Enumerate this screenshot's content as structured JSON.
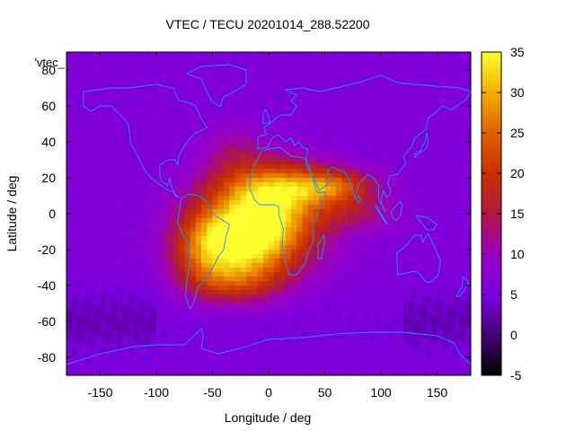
{
  "chart_data": {
    "type": "heatmap",
    "title": "VTEC / TECU 20201014_288.52200",
    "xlabel": "Longitude / deg",
    "ylabel": "Latitude / deg",
    "key_label": "'vtec_",
    "xlim": [
      -180,
      180
    ],
    "ylim": [
      -90,
      90
    ],
    "x_ticks": [
      -150,
      -100,
      -50,
      0,
      50,
      100,
      150
    ],
    "y_ticks": [
      -80,
      -60,
      -40,
      -20,
      0,
      20,
      40,
      60,
      80
    ],
    "colorbar": {
      "range": [
        -5,
        35
      ],
      "ticks": [
        -5,
        0,
        5,
        10,
        15,
        20,
        25,
        30,
        35
      ]
    },
    "grid_resolution_deg": [
      5,
      2.5
    ],
    "background_vtec": 6,
    "blobs": [
      {
        "name": "south-atlantic-core",
        "lon": 0,
        "lat": -5,
        "sx": 35,
        "sy": 18,
        "amp": 22
      },
      {
        "name": "south-america-east",
        "lon": -30,
        "lat": -15,
        "sx": 30,
        "sy": 15,
        "amp": 18
      },
      {
        "name": "africa-north-crest",
        "lon": 10,
        "lat": 15,
        "sx": 40,
        "sy": 10,
        "amp": 14
      },
      {
        "name": "indian-ocean-tail",
        "lon": 60,
        "lat": 15,
        "sx": 25,
        "sy": 6,
        "amp": 12
      },
      {
        "name": "southern-midlat",
        "lon": -30,
        "lat": -38,
        "sx": 30,
        "sy": 9,
        "amp": 10
      },
      {
        "name": "tropical-belt-east",
        "lon": 80,
        "lat": 0,
        "sx": 25,
        "sy": 7,
        "amp": 6
      },
      {
        "name": "south-america-west",
        "lon": -60,
        "lat": -20,
        "sx": 20,
        "sy": 15,
        "amp": 10
      },
      {
        "name": "north-atlantic-ridge",
        "lon": -30,
        "lat": 35,
        "sx": 20,
        "sy": 10,
        "amp": 5
      }
    ],
    "coastlines": [
      {
        "name": "north-america",
        "points": [
          [
            -165,
            68
          ],
          [
            -140,
            70
          ],
          [
            -125,
            70
          ],
          [
            -100,
            72
          ],
          [
            -85,
            70
          ],
          [
            -80,
            63
          ],
          [
            -72,
            62
          ],
          [
            -65,
            60
          ],
          [
            -60,
            53
          ],
          [
            -55,
            48
          ],
          [
            -65,
            45
          ],
          [
            -70,
            42
          ],
          [
            -75,
            38
          ],
          [
            -80,
            32
          ],
          [
            -81,
            27
          ],
          [
            -83,
            30
          ],
          [
            -90,
            30
          ],
          [
            -97,
            27
          ],
          [
            -97,
            21
          ],
          [
            -95,
            18
          ],
          [
            -90,
            16
          ],
          [
            -88,
            20
          ],
          [
            -87,
            16
          ],
          [
            -83,
            10
          ],
          [
            -80,
            9
          ],
          [
            -85,
            12
          ],
          [
            -92,
            14
          ],
          [
            -105,
            20
          ],
          [
            -110,
            24
          ],
          [
            -115,
            30
          ],
          [
            -118,
            34
          ],
          [
            -123,
            39
          ],
          [
            -124,
            46
          ],
          [
            -125,
            50
          ],
          [
            -132,
            55
          ],
          [
            -140,
            60
          ],
          [
            -150,
            60
          ],
          [
            -158,
            57
          ],
          [
            -165,
            60
          ],
          [
            -165,
            68
          ]
        ]
      },
      {
        "name": "south-america",
        "points": [
          [
            -78,
            8
          ],
          [
            -72,
            11
          ],
          [
            -62,
            10
          ],
          [
            -52,
            5
          ],
          [
            -50,
            0
          ],
          [
            -45,
            -2
          ],
          [
            -35,
            -6
          ],
          [
            -38,
            -13
          ],
          [
            -40,
            -20
          ],
          [
            -45,
            -24
          ],
          [
            -48,
            -28
          ],
          [
            -53,
            -34
          ],
          [
            -58,
            -38
          ],
          [
            -63,
            -41
          ],
          [
            -65,
            -45
          ],
          [
            -67,
            -50
          ],
          [
            -70,
            -53
          ],
          [
            -72,
            -50
          ],
          [
            -74,
            -45
          ],
          [
            -73,
            -38
          ],
          [
            -71,
            -30
          ],
          [
            -70,
            -18
          ],
          [
            -76,
            -12
          ],
          [
            -81,
            -5
          ],
          [
            -80,
            0
          ],
          [
            -78,
            8
          ]
        ]
      },
      {
        "name": "africa",
        "points": [
          [
            -17,
            15
          ],
          [
            -16,
            21
          ],
          [
            -13,
            27
          ],
          [
            -10,
            30
          ],
          [
            -6,
            35
          ],
          [
            0,
            36
          ],
          [
            10,
            37
          ],
          [
            20,
            32
          ],
          [
            32,
            31
          ],
          [
            35,
            28
          ],
          [
            43,
            12
          ],
          [
            51,
            12
          ],
          [
            45,
            2
          ],
          [
            40,
            -5
          ],
          [
            40,
            -15
          ],
          [
            35,
            -22
          ],
          [
            32,
            -28
          ],
          [
            25,
            -34
          ],
          [
            18,
            -34
          ],
          [
            15,
            -27
          ],
          [
            12,
            -17
          ],
          [
            13,
            -8
          ],
          [
            9,
            -1
          ],
          [
            9,
            4
          ],
          [
            5,
            5
          ],
          [
            -5,
            5
          ],
          [
            -8,
            5
          ],
          [
            -13,
            8
          ],
          [
            -17,
            15
          ]
        ]
      },
      {
        "name": "eurasia",
        "points": [
          [
            -10,
            36
          ],
          [
            -9,
            43
          ],
          [
            -2,
            44
          ],
          [
            -4,
            48
          ],
          [
            3,
            51
          ],
          [
            8,
            54
          ],
          [
            12,
            55
          ],
          [
            20,
            55
          ],
          [
            25,
            60
          ],
          [
            20,
            63
          ],
          [
            25,
            66
          ],
          [
            15,
            69
          ],
          [
            30,
            70
          ],
          [
            45,
            68
          ],
          [
            60,
            70
          ],
          [
            80,
            73
          ],
          [
            100,
            77
          ],
          [
            115,
            73
          ],
          [
            130,
            72
          ],
          [
            150,
            71
          ],
          [
            170,
            70
          ],
          [
            180,
            68
          ],
          [
            175,
            63
          ],
          [
            162,
            58
          ],
          [
            155,
            60
          ],
          [
            142,
            53
          ],
          [
            140,
            47
          ],
          [
            130,
            42
          ],
          [
            127,
            37
          ],
          [
            120,
            32
          ],
          [
            122,
            28
          ],
          [
            115,
            22
          ],
          [
            108,
            21
          ],
          [
            106,
            17
          ],
          [
            109,
            12
          ],
          [
            105,
            9
          ],
          [
            102,
            13
          ],
          [
            100,
            6
          ],
          [
            104,
            1
          ],
          [
            98,
            8
          ],
          [
            98,
            16
          ],
          [
            93,
            20
          ],
          [
            88,
            22
          ],
          [
            80,
            16
          ],
          [
            77,
            8
          ],
          [
            73,
            17
          ],
          [
            68,
            23
          ],
          [
            60,
            25
          ],
          [
            57,
            26
          ],
          [
            52,
            24
          ],
          [
            56,
            20
          ],
          [
            52,
            16
          ],
          [
            45,
            13
          ],
          [
            43,
            16
          ],
          [
            38,
            22
          ],
          [
            33,
            28
          ],
          [
            35,
            36
          ],
          [
            30,
            37
          ],
          [
            27,
            40
          ],
          [
            23,
            38
          ],
          [
            20,
            42
          ],
          [
            15,
            40
          ],
          [
            12,
            42
          ],
          [
            8,
            44
          ],
          [
            3,
            42
          ],
          [
            -1,
            37
          ],
          [
            -10,
            36
          ]
        ]
      },
      {
        "name": "australia",
        "points": [
          [
            114,
            -22
          ],
          [
            122,
            -18
          ],
          [
            130,
            -12
          ],
          [
            136,
            -12
          ],
          [
            137,
            -16
          ],
          [
            142,
            -11
          ],
          [
            145,
            -15
          ],
          [
            150,
            -22
          ],
          [
            153,
            -26
          ],
          [
            151,
            -34
          ],
          [
            145,
            -38
          ],
          [
            140,
            -38
          ],
          [
            135,
            -34
          ],
          [
            130,
            -32
          ],
          [
            115,
            -34
          ],
          [
            114,
            -22
          ]
        ]
      },
      {
        "name": "greenland",
        "points": [
          [
            -73,
            78
          ],
          [
            -60,
            82
          ],
          [
            -35,
            83
          ],
          [
            -20,
            80
          ],
          [
            -20,
            72
          ],
          [
            -25,
            70
          ],
          [
            -40,
            65
          ],
          [
            -43,
            60
          ],
          [
            -50,
            62
          ],
          [
            -55,
            68
          ],
          [
            -60,
            75
          ],
          [
            -73,
            78
          ]
        ]
      },
      {
        "name": "antarctica",
        "points": [
          [
            -180,
            -84
          ],
          [
            -150,
            -78
          ],
          [
            -120,
            -74
          ],
          [
            -100,
            -73
          ],
          [
            -75,
            -73
          ],
          [
            -60,
            -64
          ],
          [
            -58,
            -68
          ],
          [
            -60,
            -75
          ],
          [
            -45,
            -78
          ],
          [
            -20,
            -74
          ],
          [
            0,
            -70
          ],
          [
            30,
            -69
          ],
          [
            60,
            -67
          ],
          [
            90,
            -66
          ],
          [
            120,
            -66
          ],
          [
            150,
            -68
          ],
          [
            165,
            -72
          ],
          [
            170,
            -78
          ],
          [
            180,
            -84
          ]
        ]
      },
      {
        "name": "madagascar",
        "points": [
          [
            44,
            -25
          ],
          [
            47,
            -25
          ],
          [
            50,
            -15
          ],
          [
            49,
            -12
          ],
          [
            44,
            -17
          ],
          [
            44,
            -25
          ]
        ]
      },
      {
        "name": "great-britain",
        "points": [
          [
            -5,
            50
          ],
          [
            1,
            51
          ],
          [
            0,
            54
          ],
          [
            -3,
            58
          ],
          [
            -5,
            56
          ],
          [
            -5,
            50
          ]
        ]
      },
      {
        "name": "japan",
        "points": [
          [
            130,
            31
          ],
          [
            135,
            34
          ],
          [
            140,
            36
          ],
          [
            142,
            40
          ],
          [
            141,
            45
          ],
          [
            139,
            40
          ],
          [
            135,
            35
          ],
          [
            130,
            33
          ],
          [
            130,
            31
          ]
        ]
      },
      {
        "name": "new-zealand",
        "points": [
          [
            173,
            -35
          ],
          [
            178,
            -38
          ],
          [
            175,
            -42
          ],
          [
            170,
            -46
          ],
          [
            167,
            -46
          ],
          [
            172,
            -41
          ],
          [
            173,
            -35
          ]
        ]
      },
      {
        "name": "borneo",
        "points": [
          [
            109,
            1
          ],
          [
            117,
            7
          ],
          [
            119,
            5
          ],
          [
            117,
            -1
          ],
          [
            114,
            -4
          ],
          [
            110,
            -2
          ],
          [
            109,
            1
          ]
        ]
      },
      {
        "name": "sumatra",
        "points": [
          [
            95,
            5
          ],
          [
            106,
            -6
          ],
          [
            104,
            -5
          ],
          [
            98,
            1
          ],
          [
            95,
            5
          ]
        ]
      },
      {
        "name": "new-guinea",
        "points": [
          [
            131,
            -1
          ],
          [
            141,
            -2
          ],
          [
            150,
            -6
          ],
          [
            147,
            -9
          ],
          [
            141,
            -9
          ],
          [
            135,
            -4
          ],
          [
            131,
            -1
          ]
        ]
      },
      {
        "name": "sri-lanka",
        "points": [
          [
            80,
            6
          ],
          [
            82,
            8
          ],
          [
            80,
            10
          ],
          [
            79,
            8
          ],
          [
            80,
            6
          ]
        ]
      }
    ]
  }
}
